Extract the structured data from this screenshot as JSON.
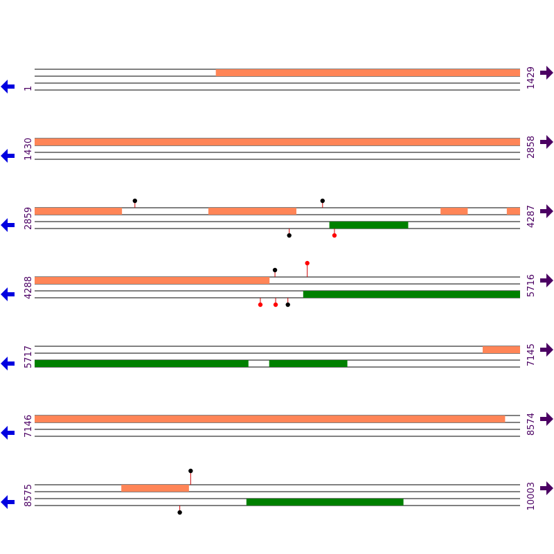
{
  "colors": {
    "orf_forward": "#ff8557",
    "orf_reverse": "#008000",
    "strand_line": "#000000",
    "stem": "#cc0000",
    "site_black": "#000000",
    "site_red": "#ff0000",
    "label": "#4b0063",
    "arrow_left": "#0000e0",
    "arrow_right": "#4b0063"
  },
  "icons": {
    "left": "arrow-left-icon",
    "right": "arrow-right-icon"
  },
  "rows": [
    {
      "start": "1",
      "end": "1429",
      "from": 1,
      "to": 1429,
      "forward_features": [
        {
          "from": 534,
          "to": 1429
        }
      ],
      "reverse_features": [],
      "sites": []
    },
    {
      "start": "1430",
      "end": "2858",
      "from": 1430,
      "to": 2858,
      "forward_features": [
        {
          "from": 1430,
          "to": 2858
        }
      ],
      "reverse_features": [],
      "sites": []
    },
    {
      "start": "2859",
      "end": "4287",
      "from": 2859,
      "to": 4287,
      "forward_features": [
        {
          "from": 2859,
          "to": 3116
        },
        {
          "from": 3370,
          "to": 3629
        },
        {
          "from": 4053,
          "to": 4133
        },
        {
          "from": 4248,
          "to": 4287
        }
      ],
      "reverse_features": [
        {
          "from": 3726,
          "to": 3958
        }
      ],
      "sites": [
        {
          "pos": 3154,
          "strand": "top",
          "color": "black"
        },
        {
          "pos": 3706,
          "strand": "top",
          "color": "black"
        },
        {
          "pos": 3608,
          "strand": "bottom",
          "color": "black"
        },
        {
          "pos": 3741,
          "strand": "bottom",
          "color": "red"
        }
      ]
    },
    {
      "start": "4288",
      "end": "5716",
      "from": 4288,
      "to": 5716,
      "forward_features": [
        {
          "from": 4288,
          "to": 4979
        }
      ],
      "reverse_features": [
        {
          "from": 5078,
          "to": 5716
        }
      ],
      "sites": [
        {
          "pos": 4995,
          "strand": "top",
          "color": "black"
        },
        {
          "pos": 5090,
          "strand": "top",
          "color": "red",
          "tall": true
        },
        {
          "pos": 4952,
          "strand": "bottom",
          "color": "red"
        },
        {
          "pos": 4997,
          "strand": "bottom",
          "color": "red"
        },
        {
          "pos": 5033,
          "strand": "bottom",
          "color": "black"
        }
      ]
    },
    {
      "start": "5717",
      "end": "7145",
      "from": 5717,
      "to": 7145,
      "forward_features": [
        {
          "from": 7035,
          "to": 7145
        }
      ],
      "reverse_features": [
        {
          "from": 5717,
          "to": 6346
        },
        {
          "from": 6407,
          "to": 6637
        }
      ],
      "sites": []
    },
    {
      "start": "7146",
      "end": "8574",
      "from": 7146,
      "to": 8574,
      "forward_features": [
        {
          "from": 7146,
          "to": 8530
        }
      ],
      "reverse_features": [],
      "sites": []
    },
    {
      "start": "8575",
      "end": "10003",
      "from": 8575,
      "to": 10003,
      "forward_features": [
        {
          "from": 8830,
          "to": 9029
        }
      ],
      "reverse_features": [
        {
          "from": 9198,
          "to": 9660
        }
      ],
      "sites": [
        {
          "pos": 9034,
          "strand": "top",
          "color": "black",
          "tall": true
        },
        {
          "pos": 9002,
          "strand": "bottom",
          "color": "black"
        }
      ]
    }
  ]
}
